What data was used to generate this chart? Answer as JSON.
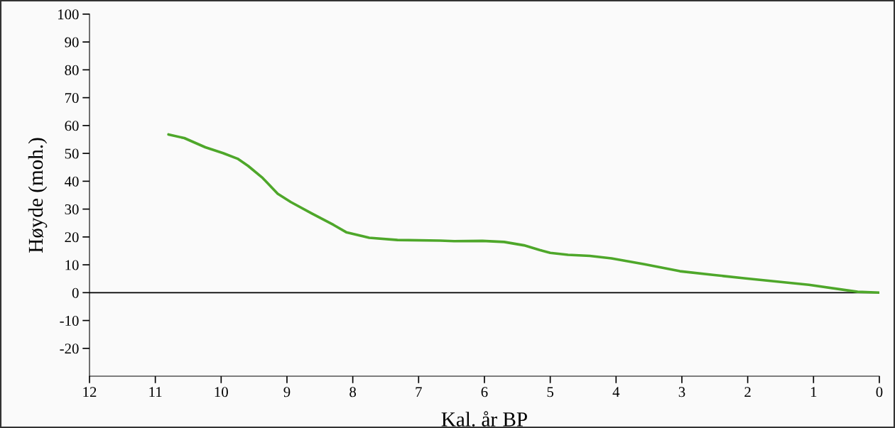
{
  "chart_data": {
    "type": "line",
    "xlabel": "Kal. år BP",
    "ylabel": "Høyde (moh.)",
    "xlim": [
      12,
      0
    ],
    "xticks": [
      12,
      11,
      10,
      9,
      8,
      7,
      6,
      5,
      4,
      3,
      2,
      1,
      0
    ],
    "ylim": [
      -30,
      100
    ],
    "yticks": [
      -20,
      -10,
      0,
      10,
      20,
      30,
      40,
      50,
      60,
      70,
      80,
      90,
      100
    ],
    "grid": false,
    "legend": false,
    "marker": "none",
    "line_style": "solid",
    "ref_lines": [
      {
        "axis": "y",
        "value": 0,
        "color": "#000000"
      }
    ],
    "series": [
      {
        "color": "#4ea72a",
        "x": [
          10.8,
          10.56,
          10.24,
          9.97,
          9.75,
          9.59,
          9.37,
          9.14,
          8.94,
          8.62,
          8.29,
          8.1,
          7.75,
          7.32,
          6.67,
          6.46,
          6.03,
          5.7,
          5.4,
          5.16,
          5.0,
          4.73,
          4.4,
          4.07,
          3.57,
          3.03,
          2.53,
          2.03,
          1.07,
          0.33,
          0
        ],
        "values": [
          56.8,
          55.5,
          52.2,
          50.1,
          48.1,
          45.5,
          41.2,
          35.5,
          32.5,
          28.4,
          24.3,
          21.7,
          19.7,
          18.9,
          18.7,
          18.5,
          18.6,
          18.2,
          17.0,
          15.3,
          14.3,
          13.6,
          13.2,
          12.3,
          10.2,
          7.7,
          6.4,
          5.1,
          2.8,
          0.3,
          0
        ]
      }
    ]
  }
}
